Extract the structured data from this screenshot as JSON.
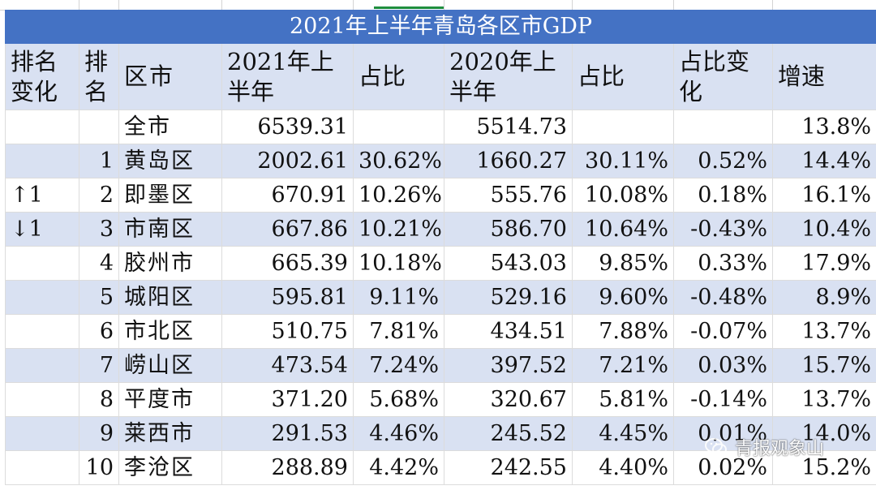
{
  "table": {
    "title": "2021年上半年青岛各区市GDP",
    "headers": [
      "排名变化",
      "排名",
      "区市",
      "2021年上半年",
      "占比",
      "2020年上半年",
      "占比",
      "占比变化",
      "增速"
    ],
    "rows": [
      {
        "change": "",
        "rank": "",
        "name": "全市",
        "gdp2021": "6539.31",
        "share2021": "",
        "gdp2020": "5514.73",
        "share2020": "",
        "share_change": "",
        "growth": "13.8%"
      },
      {
        "change": "",
        "rank": "1",
        "name": "黄岛区",
        "gdp2021": "2002.61",
        "share2021": "30.62%",
        "gdp2020": "1660.27",
        "share2020": "30.11%",
        "share_change": "0.52%",
        "growth": "14.4%"
      },
      {
        "change": "↑1",
        "rank": "2",
        "name": "即墨区",
        "gdp2021": "670.91",
        "share2021": "10.26%",
        "gdp2020": "555.76",
        "share2020": "10.08%",
        "share_change": "0.18%",
        "growth": "16.1%"
      },
      {
        "change": "↓1",
        "rank": "3",
        "name": "市南区",
        "gdp2021": "667.86",
        "share2021": "10.21%",
        "gdp2020": "586.70",
        "share2020": "10.64%",
        "share_change": "-0.43%",
        "growth": "10.4%"
      },
      {
        "change": "",
        "rank": "4",
        "name": "胶州市",
        "gdp2021": "665.39",
        "share2021": "10.18%",
        "gdp2020": "543.03",
        "share2020": "9.85%",
        "share_change": "0.33%",
        "growth": "17.9%"
      },
      {
        "change": "",
        "rank": "5",
        "name": "城阳区",
        "gdp2021": "595.81",
        "share2021": "9.11%",
        "gdp2020": "529.16",
        "share2020": "9.60%",
        "share_change": "-0.48%",
        "growth": "8.9%"
      },
      {
        "change": "",
        "rank": "6",
        "name": "市北区",
        "gdp2021": "510.75",
        "share2021": "7.81%",
        "gdp2020": "434.51",
        "share2020": "7.88%",
        "share_change": "-0.07%",
        "growth": "13.7%"
      },
      {
        "change": "",
        "rank": "7",
        "name": "崂山区",
        "gdp2021": "473.54",
        "share2021": "7.24%",
        "gdp2020": "397.52",
        "share2020": "7.21%",
        "share_change": "0.03%",
        "growth": "15.7%"
      },
      {
        "change": "",
        "rank": "8",
        "name": "平度市",
        "gdp2021": "371.20",
        "share2021": "5.68%",
        "gdp2020": "320.67",
        "share2020": "5.81%",
        "share_change": "-0.14%",
        "growth": "13.7%"
      },
      {
        "change": "",
        "rank": "9",
        "name": "莱西市",
        "gdp2021": "291.53",
        "share2021": "4.46%",
        "gdp2020": "245.52",
        "share2020": "4.45%",
        "share_change": "0.01%",
        "growth": "14.0%"
      },
      {
        "change": "",
        "rank": "10",
        "name": "李沧区",
        "gdp2021": "288.89",
        "share2021": "4.42%",
        "gdp2020": "242.55",
        "share2020": "4.40%",
        "share_change": "0.02%",
        "growth": "15.2%"
      }
    ]
  },
  "watermark": {
    "text": "青报观象山",
    "icon": "wechat-icon"
  },
  "colors": {
    "title_bg": "#4472c4",
    "band_bg": "#d9e1f2",
    "grid": "#dcdcdc"
  }
}
